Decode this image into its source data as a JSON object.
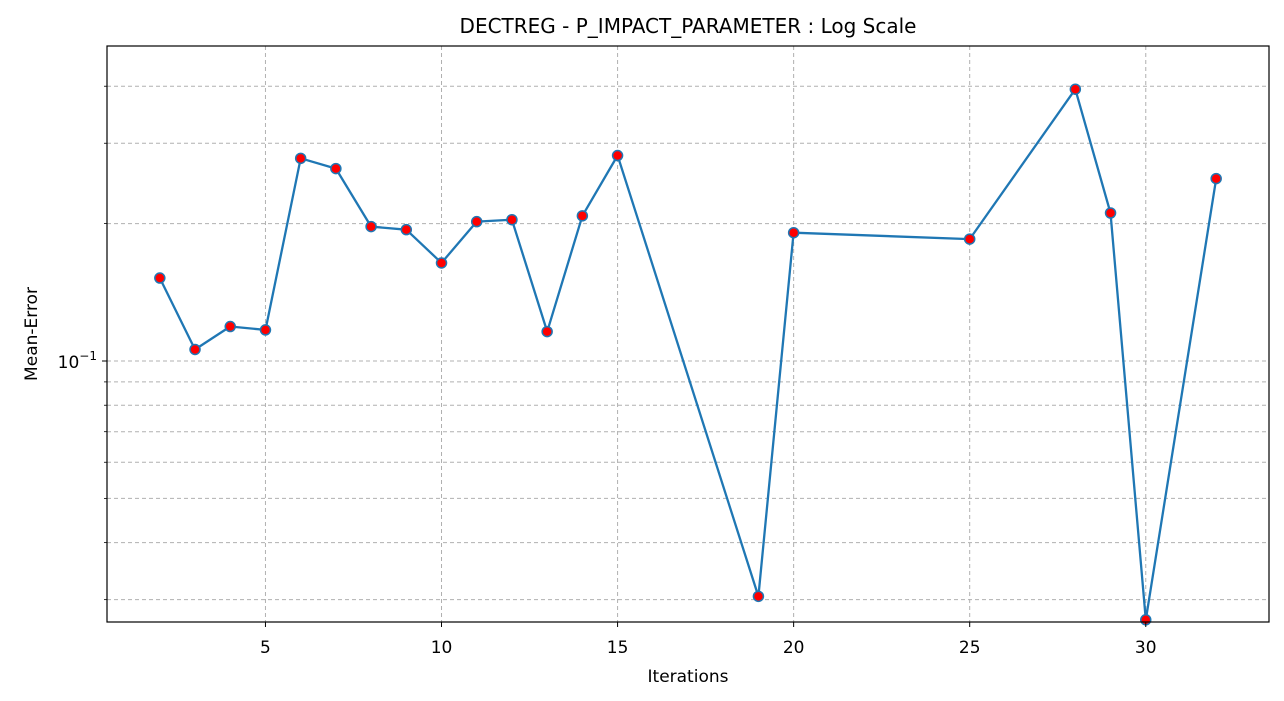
{
  "chart_data": {
    "type": "line",
    "title": "DECTREG - P_IMPACT_PARAMETER : Log Scale",
    "xlabel": "Iterations",
    "ylabel": "Mean-Error",
    "y_scale": "log",
    "xlim": [
      0.5,
      33.5
    ],
    "ylim": [
      0.0268,
      0.49
    ],
    "x_ticks": [
      5,
      10,
      15,
      20,
      25,
      30
    ],
    "y_major_ticks": [
      {
        "value": 0.1,
        "base": "10",
        "exp": "−1"
      }
    ],
    "y_minor_ticks": [
      0.03,
      0.04,
      0.05,
      0.06,
      0.07,
      0.08,
      0.09,
      0.2,
      0.3,
      0.4
    ],
    "grid": true,
    "colors": {
      "line": "#1f77b4",
      "marker_fill": "#ff0000",
      "marker_edge": "#1f77b4",
      "grid": "#b0b0b0"
    },
    "series": [
      {
        "x": [
          2,
          3,
          4,
          5,
          6,
          7,
          8,
          9,
          10,
          11,
          12,
          13,
          14,
          15,
          19,
          20,
          25,
          28,
          29,
          30,
          32
        ],
        "y": [
          0.152,
          0.106,
          0.119,
          0.117,
          0.278,
          0.264,
          0.197,
          0.194,
          0.164,
          0.202,
          0.204,
          0.116,
          0.208,
          0.282,
          0.0305,
          0.191,
          0.185,
          0.394,
          0.211,
          0.0271,
          0.251
        ]
      }
    ]
  }
}
